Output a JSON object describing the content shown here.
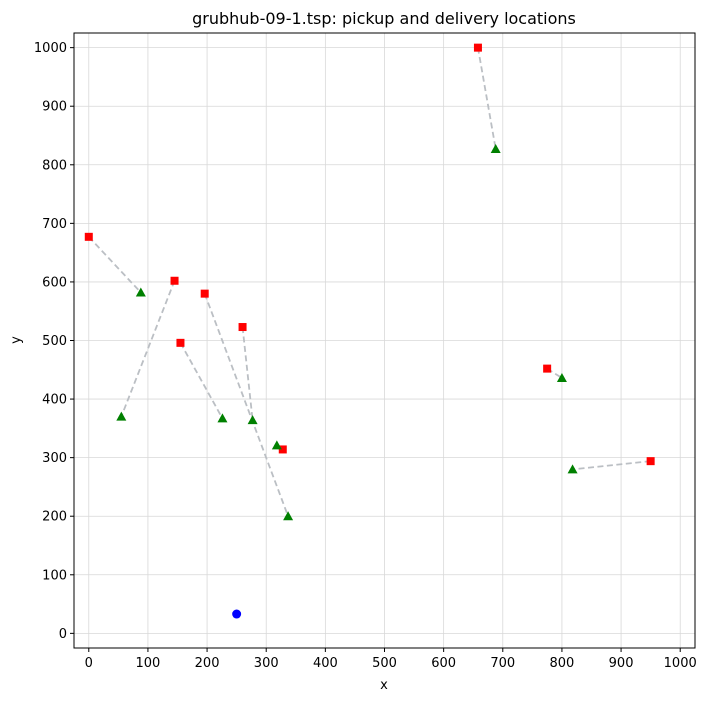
{
  "chart_data": {
    "type": "scatter",
    "title": "grubhub-09-1.tsp: pickup and delivery locations",
    "xlabel": "x",
    "ylabel": "y",
    "xlim": [
      -25,
      1025
    ],
    "ylim": [
      -25,
      1025
    ],
    "xticks": [
      0,
      100,
      200,
      300,
      400,
      500,
      600,
      700,
      800,
      900,
      1000
    ],
    "yticks": [
      0,
      100,
      200,
      300,
      400,
      500,
      600,
      700,
      800,
      900,
      1000
    ],
    "grid": true,
    "colors": {
      "pickup": "#ff0000",
      "delivery": "#008000",
      "depot": "#0000ff",
      "pair_line": "#bbbfc4"
    },
    "depot": {
      "x": 250,
      "y": 33
    },
    "pairs": [
      {
        "pickup": [
          658,
          1000
        ],
        "delivery": [
          688,
          827
        ]
      },
      {
        "pickup": [
          0,
          677
        ],
        "delivery": [
          88,
          582
        ]
      },
      {
        "pickup": [
          145,
          602
        ],
        "delivery": [
          55,
          370
        ]
      },
      {
        "pickup": [
          196,
          580
        ],
        "delivery": [
          337,
          200
        ]
      },
      {
        "pickup": [
          260,
          523
        ],
        "delivery": [
          277,
          364
        ]
      },
      {
        "pickup": [
          155,
          496
        ],
        "delivery": [
          226,
          367
        ]
      },
      {
        "pickup": [
          328,
          314
        ],
        "delivery": [
          318,
          321
        ]
      },
      {
        "pickup": [
          775,
          452
        ],
        "delivery": [
          800,
          436
        ]
      },
      {
        "pickup": [
          950,
          294
        ],
        "delivery": [
          818,
          280
        ]
      }
    ]
  }
}
